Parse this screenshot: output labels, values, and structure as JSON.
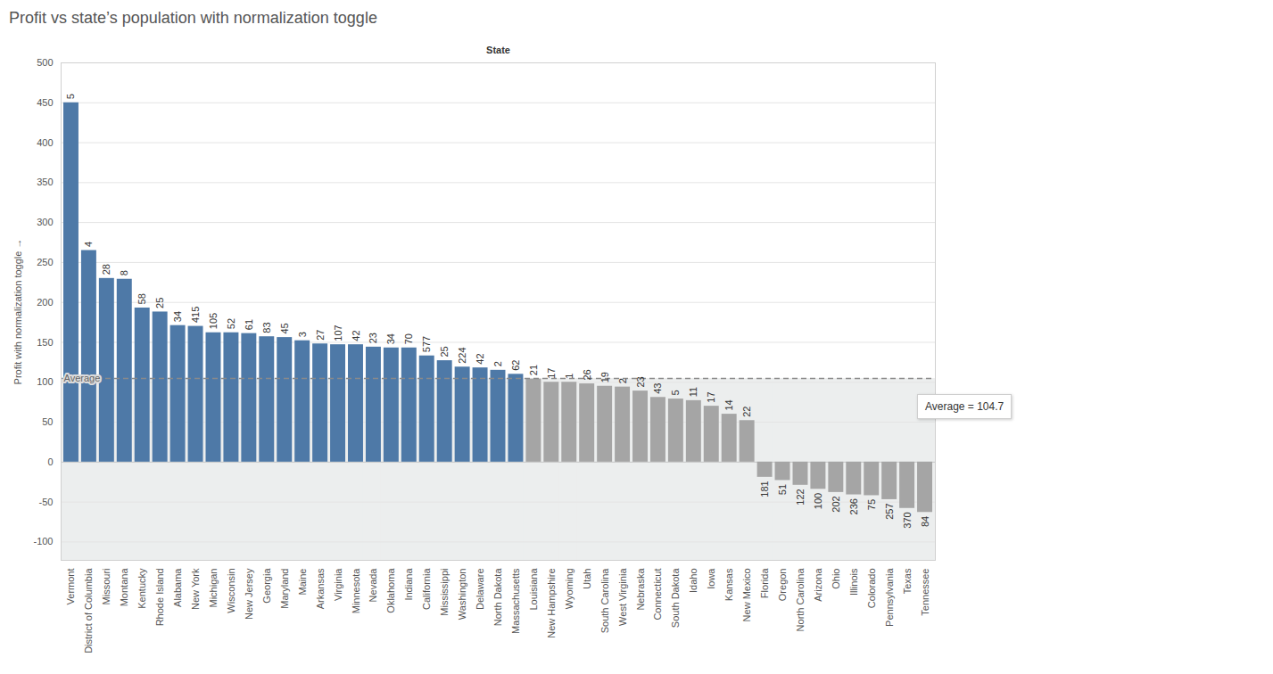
{
  "chart_data": {
    "type": "bar",
    "title": "Profit vs state’s population with normalization toggle",
    "x_label": "State",
    "y_label": "Profit with normalization toggle",
    "categories": [
      "Vermont",
      "District of Columbia",
      "Missouri",
      "Montana",
      "Kentucky",
      "Rhode Island",
      "Alabama",
      "New York",
      "Michigan",
      "Wisconsin",
      "New Jersey",
      "Georgia",
      "Maryland",
      "Maine",
      "Arkansas",
      "Virginia",
      "Minnesota",
      "Nevada",
      "Oklahoma",
      "Indiana",
      "California",
      "Mississippi",
      "Washington",
      "Delaware",
      "North Dakota",
      "Massachusetts",
      "Louisiana",
      "New Hampshire",
      "Wyoming",
      "Utah",
      "South Carolina",
      "West Virginia",
      "Nebraska",
      "Connecticut",
      "South Dakota",
      "Idaho",
      "Iowa",
      "Kansas",
      "New Mexico",
      "Florida",
      "Oregon",
      "North Carolina",
      "Arizona",
      "Ohio",
      "Illinois",
      "Colorado",
      "Pennsylvania",
      "Texas",
      "Tennessee"
    ],
    "values": [
      450,
      265,
      230,
      229,
      193,
      188,
      171,
      170,
      162,
      162,
      161,
      157,
      156,
      152,
      148,
      147,
      147,
      144,
      143,
      143,
      133,
      127,
      119,
      118,
      115,
      110,
      104,
      100,
      100,
      98,
      95,
      94,
      89,
      81,
      79,
      77,
      70,
      60,
      52,
      -19,
      -23,
      -29,
      -34,
      -38,
      -41,
      -42,
      -47,
      -58,
      -63
    ],
    "label_numbers": [
      5,
      4,
      28,
      8,
      58,
      25,
      34,
      415,
      105,
      52,
      61,
      83,
      45,
      3,
      27,
      107,
      42,
      23,
      34,
      70,
      577,
      25,
      224,
      42,
      2,
      62,
      21,
      17,
      1,
      26,
      19,
      2,
      23,
      43,
      5,
      11,
      17,
      14,
      22,
      181,
      51,
      122,
      100,
      202,
      236,
      75,
      257,
      370,
      84
    ],
    "colors": [
      "#4e79a7",
      "#4e79a7",
      "#4e79a7",
      "#4e79a7",
      "#4e79a7",
      "#4e79a7",
      "#4e79a7",
      "#4e79a7",
      "#4e79a7",
      "#4e79a7",
      "#4e79a7",
      "#4e79a7",
      "#4e79a7",
      "#4e79a7",
      "#4e79a7",
      "#4e79a7",
      "#4e79a7",
      "#4e79a7",
      "#4e79a7",
      "#4e79a7",
      "#4e79a7",
      "#4e79a7",
      "#4e79a7",
      "#4e79a7",
      "#4e79a7",
      "#4e79a7",
      "#a5a5a5",
      "#a5a5a5",
      "#a5a5a5",
      "#a5a5a5",
      "#a5a5a5",
      "#a5a5a5",
      "#a5a5a5",
      "#a5a5a5",
      "#a5a5a5",
      "#a5a5a5",
      "#a5a5a5",
      "#a5a5a5",
      "#a5a5a5",
      "#a5a5a5",
      "#a5a5a5",
      "#a5a5a5",
      "#a5a5a5",
      "#a5a5a5",
      "#a5a5a5",
      "#a5a5a5",
      "#a5a5a5",
      "#a5a5a5",
      "#a5a5a5"
    ],
    "ylim": [
      -123,
      500
    ],
    "yticks": [
      -100,
      -50,
      0,
      50,
      100,
      150,
      200,
      250,
      300,
      350,
      400,
      450,
      500
    ],
    "grid": true,
    "reference_line": {
      "value": 104.7,
      "label": "Average",
      "tooltip": "Average = 104.7"
    }
  }
}
